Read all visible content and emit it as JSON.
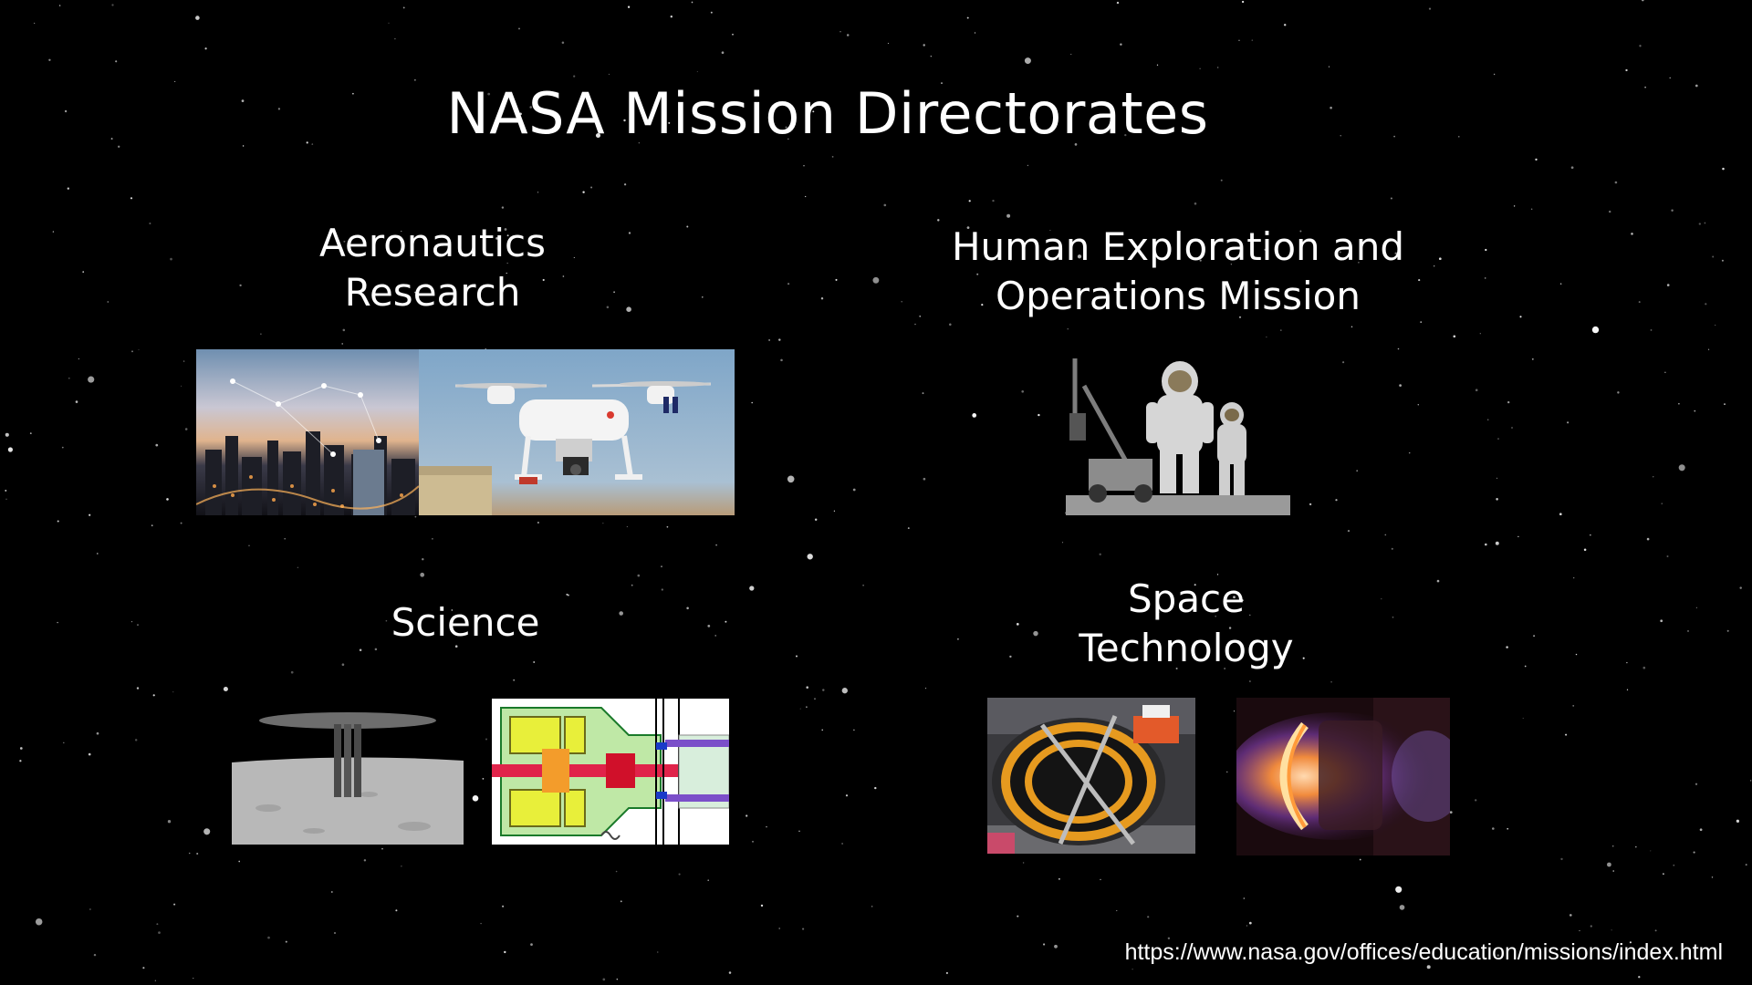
{
  "slide": {
    "title": "NASA Mission Directorates",
    "source_url": "https://www.nasa.gov/offices/education/missions/index.html"
  },
  "sections": [
    {
      "id": "aeronautics",
      "title": "Aeronautics\nResearch",
      "images": [
        {
          "name": "city-air-traffic-image"
        },
        {
          "name": "quadcopter-drone-image"
        }
      ]
    },
    {
      "id": "human-exploration",
      "title": "Human Exploration and\nOperations Mission",
      "images": [
        {
          "name": "astronauts-rover-image"
        }
      ]
    },
    {
      "id": "science",
      "title": "Science",
      "images": [
        {
          "name": "lunar-reactor-image"
        },
        {
          "name": "engine-schematic-image"
        }
      ]
    },
    {
      "id": "space-technology",
      "title": "Space\nTechnology",
      "images": [
        {
          "name": "habitat-module-image"
        },
        {
          "name": "ion-thruster-image"
        }
      ]
    }
  ],
  "colors": {
    "background": "#000000",
    "text": "#ffffff"
  }
}
